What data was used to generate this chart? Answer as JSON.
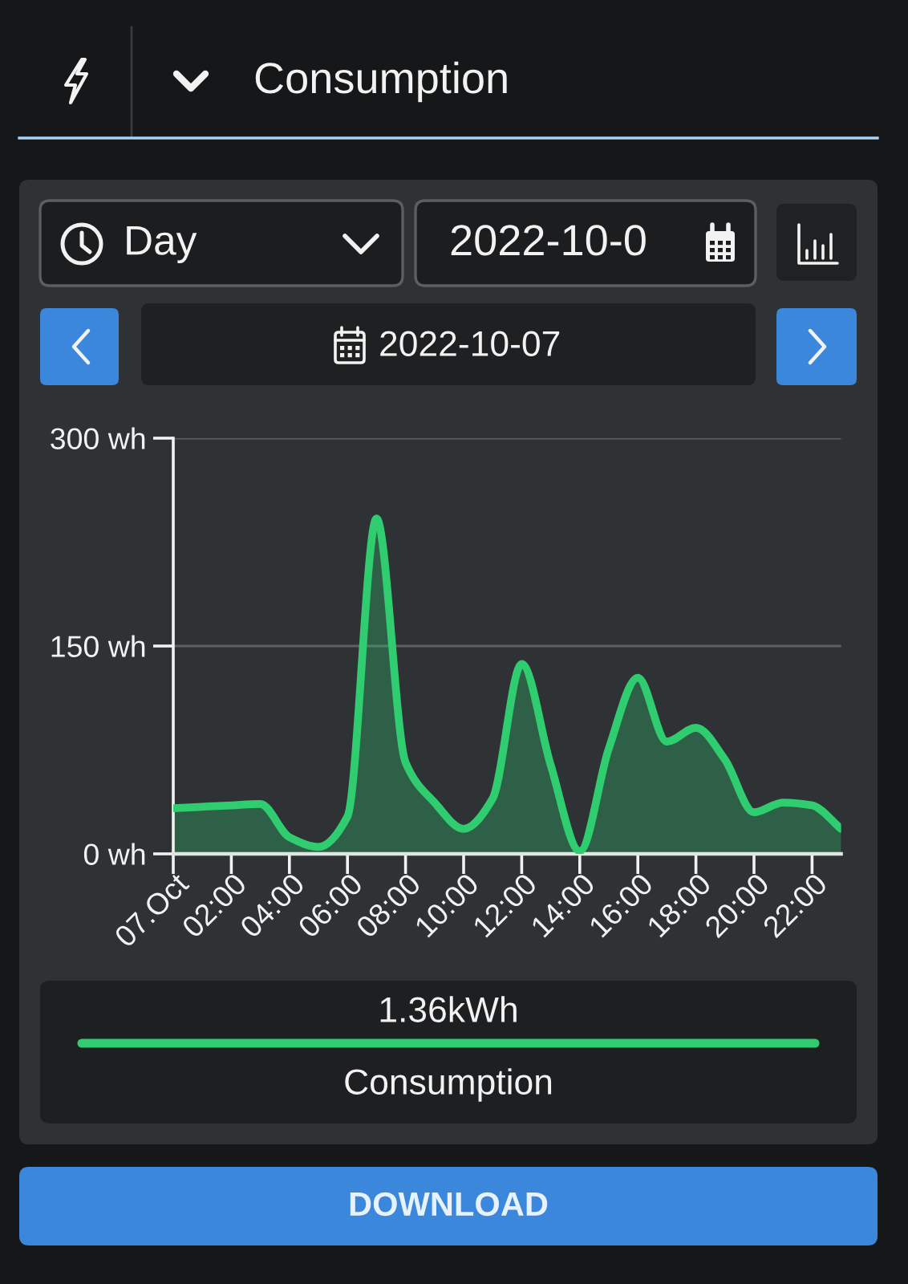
{
  "chart_data": {
    "type": "area",
    "title": "Consumption",
    "x": [
      0,
      1,
      2,
      3,
      4,
      5,
      6,
      7,
      8,
      9,
      10,
      11,
      12,
      13,
      14,
      15,
      16,
      17,
      18,
      19,
      20,
      21,
      22,
      23
    ],
    "series": [
      {
        "name": "Consumption",
        "color": "#30cc70",
        "values": [
          33,
          34,
          35,
          36,
          12,
          5,
          27,
          242,
          66,
          37,
          18,
          40,
          137,
          64,
          2,
          76,
          127,
          81,
          91,
          68,
          30,
          37,
          35,
          18
        ]
      }
    ],
    "xlim": [
      0,
      23
    ],
    "xticks": [
      {
        "value": 0,
        "label": "07.Oct"
      },
      {
        "value": 2,
        "label": "02:00"
      },
      {
        "value": 4,
        "label": "04:00"
      },
      {
        "value": 6,
        "label": "06:00"
      },
      {
        "value": 8,
        "label": "08:00"
      },
      {
        "value": 10,
        "label": "10:00"
      },
      {
        "value": 12,
        "label": "12:00"
      },
      {
        "value": 14,
        "label": "14:00"
      },
      {
        "value": 16,
        "label": "16:00"
      },
      {
        "value": 18,
        "label": "18:00"
      },
      {
        "value": 20,
        "label": "20:00"
      },
      {
        "value": 22,
        "label": "22:00"
      }
    ],
    "ylim": [
      0,
      300
    ],
    "yticks": [
      {
        "value": 0,
        "label": "0 wh"
      },
      {
        "value": 150,
        "label": "150 wh"
      },
      {
        "value": 300,
        "label": "300 wh"
      }
    ],
    "grid": "y",
    "legend": "bottom",
    "annotations": [
      "Day",
      "2022-10-0",
      "2022-10-07",
      "1.36kWh",
      "DOWNLOAD"
    ]
  }
}
